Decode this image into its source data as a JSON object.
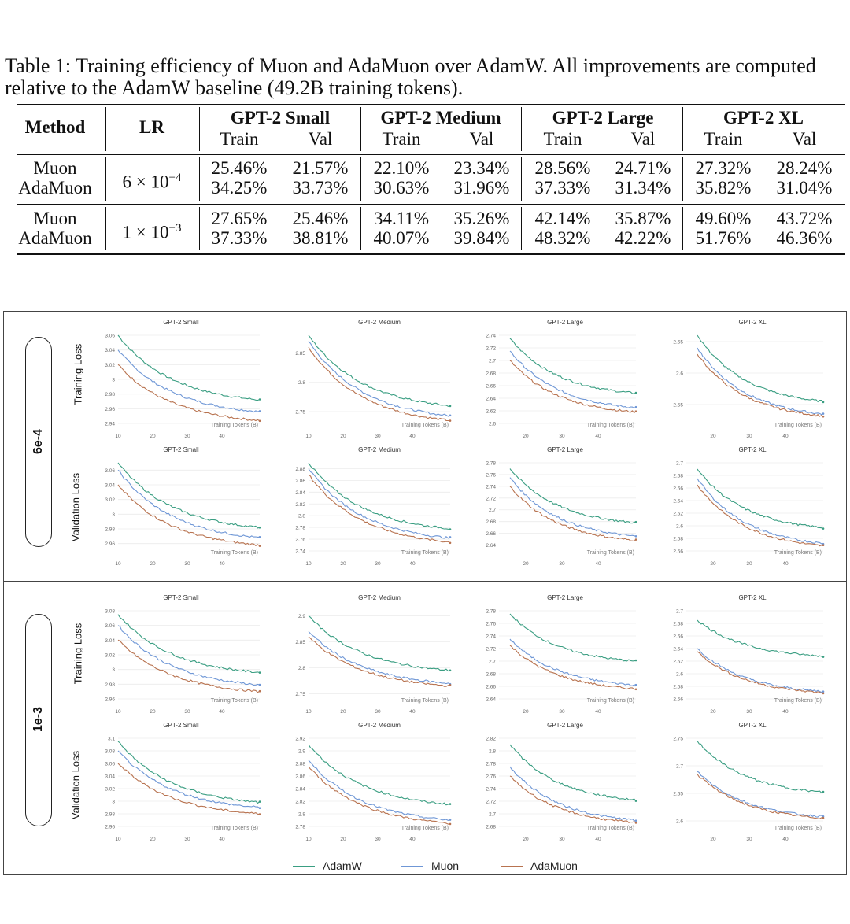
{
  "caption": "Table 1: Training efficiency of Muon and AdaMuon over AdamW. All improvements are computed relative to the AdamW baseline (49.2B training tokens).",
  "table": {
    "method_header": "Method",
    "lr_header": "LR",
    "models": [
      "GPT-2 Small",
      "GPT-2 Medium",
      "GPT-2 Large",
      "GPT-2 XL"
    ],
    "sub_headers": [
      "Train",
      "Val"
    ],
    "groups": [
      {
        "lr_base": "6 × 10",
        "lr_exp": "−4",
        "rows": [
          {
            "method": "Muon",
            "values": [
              "25.46%",
              "21.57%",
              "22.10%",
              "23.34%",
              "28.56%",
              "24.71%",
              "27.32%",
              "28.24%"
            ]
          },
          {
            "method": "AdaMuon",
            "values": [
              "34.25%",
              "33.73%",
              "30.63%",
              "31.96%",
              "37.33%",
              "31.34%",
              "35.82%",
              "31.04%"
            ]
          }
        ]
      },
      {
        "lr_base": "1 × 10",
        "lr_exp": "−3",
        "rows": [
          {
            "method": "Muon",
            "values": [
              "27.65%",
              "25.46%",
              "34.11%",
              "35.26%",
              "42.14%",
              "35.87%",
              "49.60%",
              "43.72%"
            ]
          },
          {
            "method": "AdaMuon",
            "values": [
              "37.33%",
              "38.81%",
              "40.07%",
              "39.84%",
              "48.32%",
              "42.22%",
              "51.76%",
              "46.36%"
            ]
          }
        ]
      }
    ]
  },
  "figure": {
    "lr_labels": [
      "6e-4",
      "1e-3"
    ],
    "row_labels": [
      "Training Loss",
      "Validation Loss"
    ],
    "xlabel": "Training Tokens (B)",
    "legend": [
      {
        "name": "AdamW",
        "color": "#3a9e82"
      },
      {
        "name": "Muon",
        "color": "#6f97d6"
      },
      {
        "name": "AdaMuon",
        "color": "#b87350"
      }
    ]
  },
  "chart_data": [
    {
      "type": "line",
      "title": "GPT-2 Small",
      "group": "6e-4",
      "metric": "Training Loss",
      "xlabel": "Training Tokens (B)",
      "xticks": [
        "10",
        "20",
        "30",
        "40"
      ],
      "yticks": [
        "2.94",
        "2.96",
        "2.98",
        "3",
        "3.02",
        "3.04",
        "3.06"
      ],
      "ylim": [
        2.94,
        3.06
      ],
      "series": [
        {
          "name": "AdamW",
          "start": 3.06,
          "end": 2.972
        },
        {
          "name": "Muon",
          "start": 3.04,
          "end": 2.956
        },
        {
          "name": "AdaMuon",
          "start": 3.02,
          "end": 2.944
        }
      ]
    },
    {
      "type": "line",
      "title": "GPT-2 Medium",
      "group": "6e-4",
      "metric": "Training Loss",
      "xlabel": "Training Tokens (B)",
      "xticks": [
        "10",
        "20",
        "30",
        "40"
      ],
      "yticks": [
        "2.75",
        "2.8",
        "2.85"
      ],
      "ylim": [
        2.73,
        2.88
      ],
      "series": [
        {
          "name": "AdamW",
          "start": 2.88,
          "end": 2.76
        },
        {
          "name": "Muon",
          "start": 2.87,
          "end": 2.743
        },
        {
          "name": "AdaMuon",
          "start": 2.86,
          "end": 2.735
        }
      ]
    },
    {
      "type": "line",
      "title": "GPT-2 Large",
      "group": "6e-4",
      "metric": "Training Loss",
      "xlabel": "Training Tokens (B)",
      "xticks": [
        "20",
        "30",
        "40"
      ],
      "yticks": [
        "2.6",
        "2.62",
        "2.64",
        "2.66",
        "2.68",
        "2.7",
        "2.72",
        "2.74"
      ],
      "ylim": [
        2.6,
        2.74
      ],
      "series": [
        {
          "name": "AdamW",
          "start": 2.735,
          "end": 2.648
        },
        {
          "name": "Muon",
          "start": 2.715,
          "end": 2.625
        },
        {
          "name": "AdaMuon",
          "start": 2.7,
          "end": 2.618
        }
      ]
    },
    {
      "type": "line",
      "title": "GPT-2 XL",
      "group": "6e-4",
      "metric": "Training Loss",
      "xlabel": "Training Tokens (B)",
      "xticks": [
        "20",
        "30",
        "40"
      ],
      "yticks": [
        "2.55",
        "2.6",
        "2.65"
      ],
      "ylim": [
        2.52,
        2.66
      ],
      "series": [
        {
          "name": "AdamW",
          "start": 2.66,
          "end": 2.555
        },
        {
          "name": "Muon",
          "start": 2.64,
          "end": 2.535
        },
        {
          "name": "AdaMuon",
          "start": 2.63,
          "end": 2.532
        }
      ]
    },
    {
      "type": "line",
      "title": "GPT-2 Small",
      "group": "6e-4",
      "metric": "Validation Loss",
      "xlabel": "Training Tokens (B)",
      "xticks": [
        "10",
        "20",
        "30",
        "40"
      ],
      "yticks": [
        "2.96",
        "2.98",
        "3",
        "3.02",
        "3.04",
        "3.06"
      ],
      "ylim": [
        2.95,
        3.07
      ],
      "series": [
        {
          "name": "AdamW",
          "start": 3.07,
          "end": 2.982
        },
        {
          "name": "Muon",
          "start": 3.06,
          "end": 2.968
        },
        {
          "name": "AdaMuon",
          "start": 3.04,
          "end": 2.958
        }
      ]
    },
    {
      "type": "line",
      "title": "GPT-2 Medium",
      "group": "6e-4",
      "metric": "Validation Loss",
      "xlabel": "Training Tokens (B)",
      "xticks": [
        "10",
        "20",
        "30",
        "40"
      ],
      "yticks": [
        "2.74",
        "2.76",
        "2.78",
        "2.8",
        "2.82",
        "2.84",
        "2.86",
        "2.88"
      ],
      "ylim": [
        2.74,
        2.89
      ],
      "series": [
        {
          "name": "AdamW",
          "start": 2.89,
          "end": 2.778
        },
        {
          "name": "Muon",
          "start": 2.88,
          "end": 2.762
        },
        {
          "name": "AdaMuon",
          "start": 2.87,
          "end": 2.755
        }
      ]
    },
    {
      "type": "line",
      "title": "GPT-2 Large",
      "group": "6e-4",
      "metric": "Validation Loss",
      "xlabel": "Training Tokens (B)",
      "xticks": [
        "20",
        "30",
        "40"
      ],
      "yticks": [
        "2.64",
        "2.66",
        "2.68",
        "2.7",
        "2.72",
        "2.74",
        "2.76",
        "2.78"
      ],
      "ylim": [
        2.63,
        2.78
      ],
      "series": [
        {
          "name": "AdamW",
          "start": 2.77,
          "end": 2.678
        },
        {
          "name": "Muon",
          "start": 2.755,
          "end": 2.655
        },
        {
          "name": "AdaMuon",
          "start": 2.74,
          "end": 2.648
        }
      ]
    },
    {
      "type": "line",
      "title": "GPT-2 XL",
      "group": "6e-4",
      "metric": "Validation Loss",
      "xlabel": "Training Tokens (B)",
      "xticks": [
        "20",
        "30",
        "40"
      ],
      "yticks": [
        "2.56",
        "2.58",
        "2.6",
        "2.62",
        "2.64",
        "2.66",
        "2.68",
        "2.7"
      ],
      "ylim": [
        2.56,
        2.7
      ],
      "series": [
        {
          "name": "AdamW",
          "start": 2.69,
          "end": 2.597
        },
        {
          "name": "Muon",
          "start": 2.675,
          "end": 2.572
        },
        {
          "name": "AdaMuon",
          "start": 2.665,
          "end": 2.568
        }
      ]
    },
    {
      "type": "line",
      "title": "GPT-2 Small",
      "group": "1e-3",
      "metric": "Training Loss",
      "xlabel": "Training Tokens (B)",
      "xticks": [
        "10",
        "20",
        "30",
        "40"
      ],
      "yticks": [
        "2.96",
        "2.98",
        "3",
        "3.02",
        "3.04",
        "3.06",
        "3.08"
      ],
      "ylim": [
        2.96,
        3.08
      ],
      "series": [
        {
          "name": "AdamW",
          "start": 3.075,
          "end": 2.996
        },
        {
          "name": "Muon",
          "start": 3.06,
          "end": 2.979
        },
        {
          "name": "AdaMuon",
          "start": 3.04,
          "end": 2.97
        }
      ]
    },
    {
      "type": "line",
      "title": "GPT-2 Medium",
      "group": "1e-3",
      "metric": "Training Loss",
      "xlabel": "Training Tokens (B)",
      "xticks": [
        "10",
        "20",
        "30",
        "40"
      ],
      "yticks": [
        "2.75",
        "2.8",
        "2.85",
        "2.9"
      ],
      "ylim": [
        2.74,
        2.91
      ],
      "series": [
        {
          "name": "AdamW",
          "start": 2.9,
          "end": 2.795
        },
        {
          "name": "Muon",
          "start": 2.87,
          "end": 2.77
        },
        {
          "name": "AdaMuon",
          "start": 2.86,
          "end": 2.765
        }
      ]
    },
    {
      "type": "line",
      "title": "GPT-2 Large",
      "group": "1e-3",
      "metric": "Training Loss",
      "xlabel": "Training Tokens (B)",
      "xticks": [
        "20",
        "30",
        "40"
      ],
      "yticks": [
        "2.64",
        "2.66",
        "2.68",
        "2.7",
        "2.72",
        "2.74",
        "2.76",
        "2.78"
      ],
      "ylim": [
        2.64,
        2.78
      ],
      "series": [
        {
          "name": "AdamW",
          "start": 2.775,
          "end": 2.7
        },
        {
          "name": "Muon",
          "start": 2.735,
          "end": 2.662
        },
        {
          "name": "AdaMuon",
          "start": 2.725,
          "end": 2.656
        }
      ]
    },
    {
      "type": "line",
      "title": "GPT-2 XL",
      "group": "1e-3",
      "metric": "Training Loss",
      "xlabel": "Training Tokens (B)",
      "xticks": [
        "20",
        "30",
        "40"
      ],
      "yticks": [
        "2.56",
        "2.58",
        "2.6",
        "2.62",
        "2.64",
        "2.66",
        "2.68",
        "2.7"
      ],
      "ylim": [
        2.56,
        2.7
      ],
      "series": [
        {
          "name": "AdamW",
          "start": 2.685,
          "end": 2.628
        },
        {
          "name": "Muon",
          "start": 2.64,
          "end": 2.572
        },
        {
          "name": "AdaMuon",
          "start": 2.635,
          "end": 2.57
        }
      ]
    },
    {
      "type": "line",
      "title": "GPT-2 Small",
      "group": "1e-3",
      "metric": "Validation Loss",
      "xlabel": "Training Tokens (B)",
      "xticks": [
        "10",
        "20",
        "30",
        "40"
      ],
      "yticks": [
        "2.96",
        "2.98",
        "3",
        "3.02",
        "3.04",
        "3.06",
        "3.08",
        "3.1"
      ],
      "ylim": [
        2.96,
        3.1
      ],
      "series": [
        {
          "name": "AdamW",
          "start": 3.095,
          "end": 2.998
        },
        {
          "name": "Muon",
          "start": 3.08,
          "end": 2.99
        },
        {
          "name": "AdaMuon",
          "start": 3.06,
          "end": 2.98
        }
      ]
    },
    {
      "type": "line",
      "title": "GPT-2 Medium",
      "group": "1e-3",
      "metric": "Validation Loss",
      "xlabel": "Training Tokens (B)",
      "xticks": [
        "10",
        "20",
        "30",
        "40"
      ],
      "yticks": [
        "2.78",
        "2.8",
        "2.82",
        "2.84",
        "2.86",
        "2.88",
        "2.9",
        "2.92"
      ],
      "ylim": [
        2.78,
        2.92
      ],
      "series": [
        {
          "name": "AdamW",
          "start": 2.91,
          "end": 2.815
        },
        {
          "name": "Muon",
          "start": 2.885,
          "end": 2.79
        },
        {
          "name": "AdaMuon",
          "start": 2.875,
          "end": 2.785
        }
      ]
    },
    {
      "type": "line",
      "title": "GPT-2 Large",
      "group": "1e-3",
      "metric": "Validation Loss",
      "xlabel": "Training Tokens (B)",
      "xticks": [
        "20",
        "30",
        "40"
      ],
      "yticks": [
        "2.68",
        "2.7",
        "2.72",
        "2.74",
        "2.76",
        "2.78",
        "2.8",
        "2.82"
      ],
      "ylim": [
        2.68,
        2.82
      ],
      "series": [
        {
          "name": "AdamW",
          "start": 2.81,
          "end": 2.722
        },
        {
          "name": "Muon",
          "start": 2.775,
          "end": 2.69
        },
        {
          "name": "AdaMuon",
          "start": 2.76,
          "end": 2.686
        }
      ]
    },
    {
      "type": "line",
      "title": "GPT-2 XL",
      "group": "1e-3",
      "metric": "Validation Loss",
      "xlabel": "Training Tokens (B)",
      "xticks": [
        "20",
        "30",
        "40"
      ],
      "yticks": [
        "2.6",
        "2.65",
        "2.7",
        "2.75"
      ],
      "ylim": [
        2.59,
        2.75
      ],
      "series": [
        {
          "name": "AdamW",
          "start": 2.745,
          "end": 2.652
        },
        {
          "name": "Muon",
          "start": 2.69,
          "end": 2.608
        },
        {
          "name": "AdaMuon",
          "start": 2.685,
          "end": 2.605
        }
      ]
    }
  ]
}
